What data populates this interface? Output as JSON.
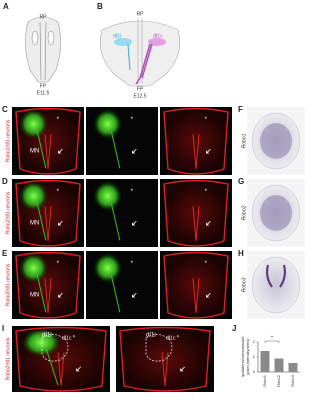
{
  "panel_letters": [
    "A",
    "B",
    "C",
    "D",
    "E",
    "F",
    "G",
    "H",
    "I",
    "J"
  ],
  "asterisk": "*",
  "schematic_a": {
    "top": "RP",
    "bottom": "FP",
    "stage": "E11.5"
  },
  "schematic_b": {
    "top": "RP",
    "bottom": "FP",
    "stage": "E12.5",
    "left": "dI1i",
    "right": "dI1c"
  },
  "rows": [
    {
      "label": "Robo1/dI1 neurons",
      "gene": "Robo1",
      "mn": "MN"
    },
    {
      "label": "Robo2/dI1 neurons",
      "gene": "Robo2",
      "mn": "MN"
    },
    {
      "label": "Robo3/dI1 neurons",
      "gene": "Robo3",
      "mn": "MN"
    }
  ],
  "panel_i": {
    "label": "Robo2/dI1 neurons",
    "left": "dI1i",
    "right": "dI1c"
  },
  "chart": {
    "type": "bar",
    "ylabel": "Ipsilateral/commissural\n(pixel intensity/area)",
    "categories": [
      "Robo1",
      "Robo2",
      "Robo3"
    ],
    "values": [
      1.4,
      0.9,
      0.6
    ],
    "color": "#8a8a8a",
    "ylim": [
      0,
      2
    ],
    "yticks": [
      0,
      1,
      2
    ],
    "significance": "*"
  }
}
